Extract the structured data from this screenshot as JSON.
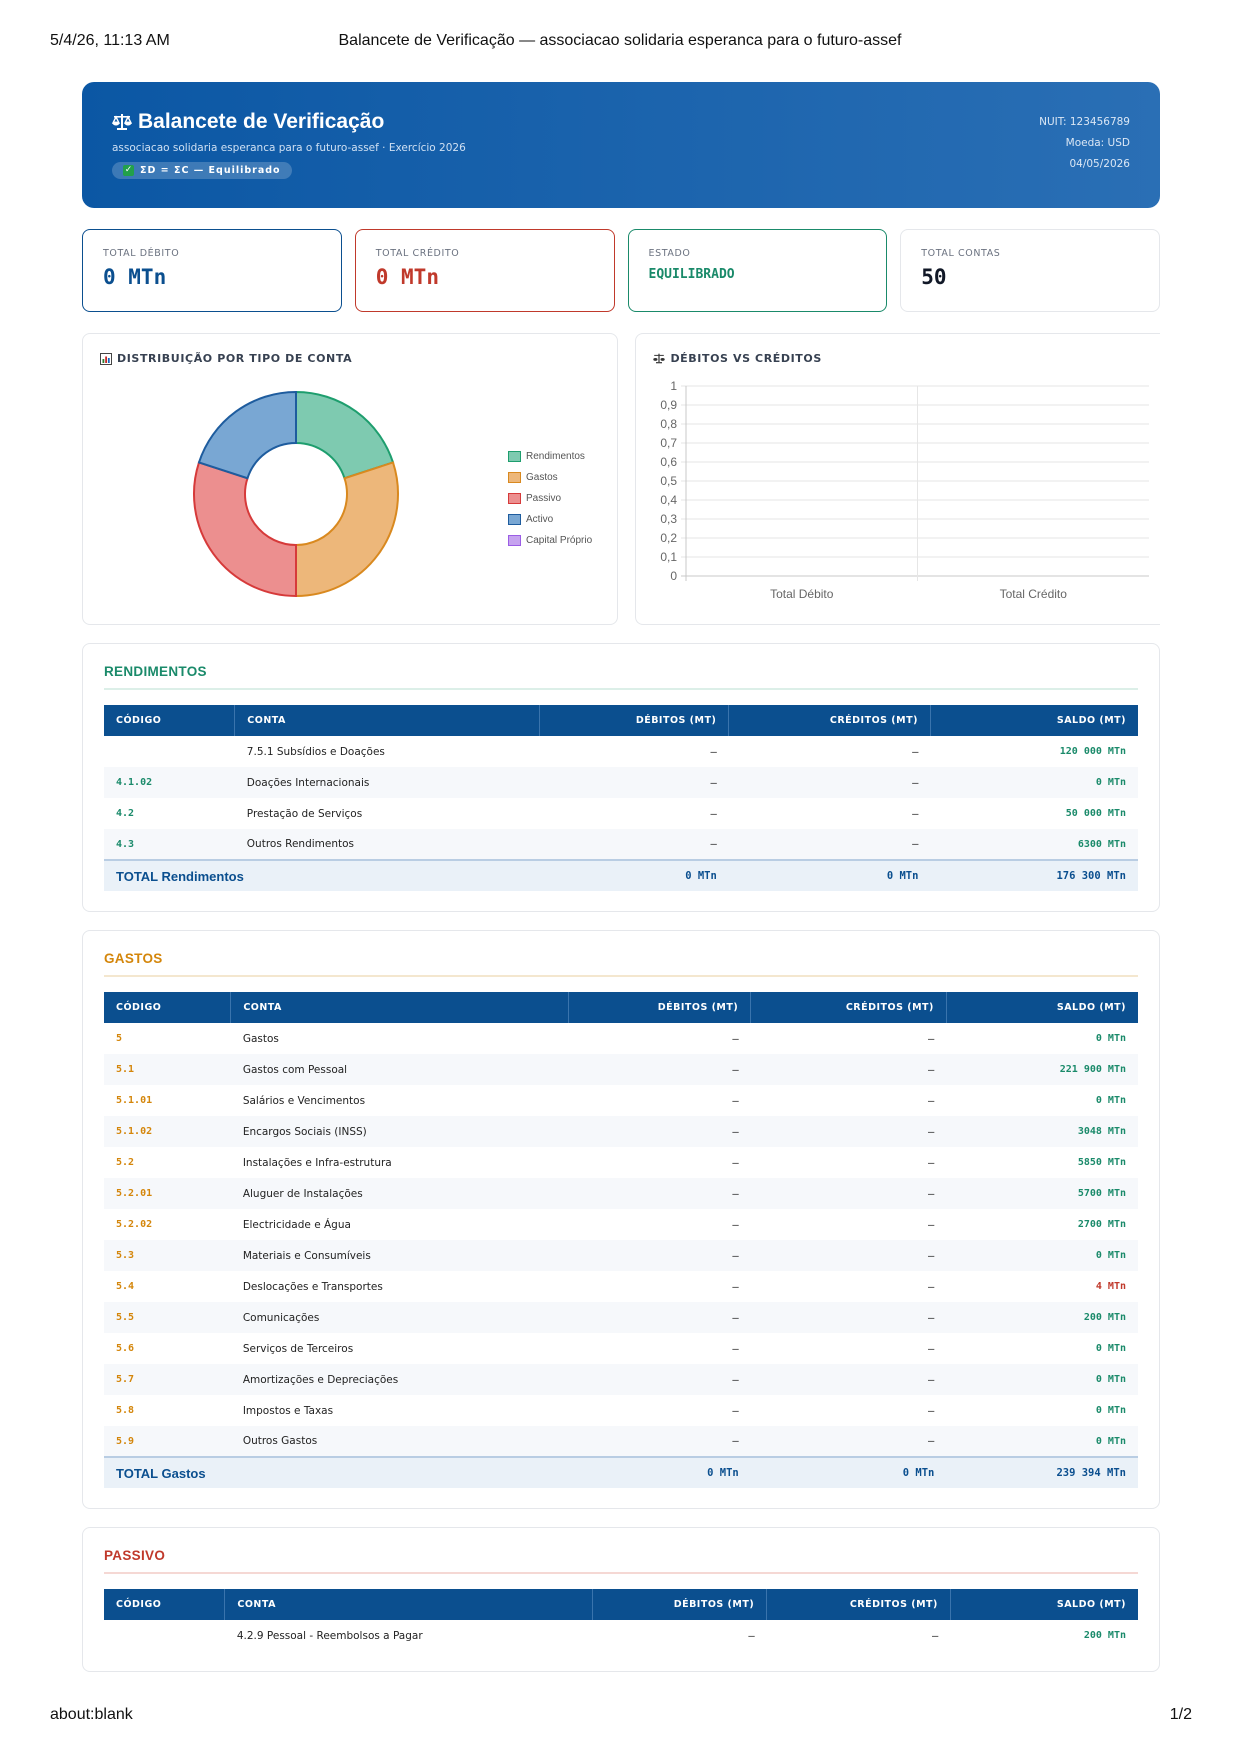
{
  "print": {
    "datetime": "5/4/26, 11:13 AM",
    "title": "Balancete de Verificação — associacao solidaria esperanca para o futuro-assef",
    "url": "about:blank",
    "page": "1/2"
  },
  "header": {
    "title": "Balancete de Verificação",
    "subtitle": "associacao solidaria esperanca para o futuro-assef · Exercício 2026",
    "badge": "ΣD = ΣC — Equilibrado",
    "nuit": "NUIT: 123456789",
    "moeda": "Moeda: USD",
    "date": "04/05/2026"
  },
  "cards": [
    {
      "label": "TOTAL DÉBITO",
      "value": "0 MTn"
    },
    {
      "label": "TOTAL CRÉDITO",
      "value": "0 MTn"
    },
    {
      "label": "ESTADO",
      "value": "EQUILIBRADO"
    },
    {
      "label": "TOTAL CONTAS",
      "value": "50"
    }
  ],
  "charts": {
    "donut_title": "DISTRIBUIÇÃO POR TIPO DE CONTA",
    "bar_title": "DÉBITOS VS CRÉDITOS"
  },
  "chart_data": [
    {
      "type": "pie",
      "title": "DISTRIBUIÇÃO POR TIPO DE CONTA",
      "categories": [
        "Rendimentos",
        "Gastos",
        "Passivo",
        "Activo",
        "Capital Próprio"
      ],
      "values": [
        20,
        30,
        30,
        20,
        0
      ],
      "colors": [
        "#7ecab0",
        "#edb77a",
        "#ec8f8f",
        "#79a7d3",
        "#c6a3ef"
      ],
      "borders": [
        "#1e9e6e",
        "#d9891f",
        "#d63a3a",
        "#1e5c9e",
        "#9b5de5"
      ],
      "legend": "right"
    },
    {
      "type": "bar",
      "title": "DÉBITOS VS CRÉDITOS",
      "categories": [
        "Total Débito",
        "Total Crédito"
      ],
      "values": [
        0,
        0
      ],
      "ylim": [
        0,
        1
      ],
      "yticks": [
        "0",
        "0,1",
        "0,2",
        "0,3",
        "0,4",
        "0,5",
        "0,6",
        "0,7",
        "0,8",
        "0,9",
        "1"
      ],
      "grid": true
    }
  ],
  "table_headers": {
    "codigo": "CÓDIGO",
    "conta": "CONTA",
    "debitos": "DÉBITOS (MT)",
    "creditos": "CRÉDITOS (MT)",
    "saldo": "SALDO (MT)"
  },
  "rendimentos": {
    "title": "RENDIMENTOS",
    "rows": [
      {
        "codigo": "",
        "conta": "7.5.1 Subsídios e Doações",
        "debitos": "–",
        "creditos": "–",
        "saldo": "120 000 MTn"
      },
      {
        "codigo": "4.1.02",
        "conta": "Doações Internacionais",
        "debitos": "–",
        "creditos": "–",
        "saldo": "0 MTn"
      },
      {
        "codigo": "4.2",
        "conta": "Prestação de Serviços",
        "debitos": "–",
        "creditos": "–",
        "saldo": "50 000 MTn"
      },
      {
        "codigo": "4.3",
        "conta": "Outros Rendimentos",
        "debitos": "–",
        "creditos": "–",
        "saldo": "6300 MTn"
      }
    ],
    "total": {
      "label": "TOTAL Rendimentos",
      "debitos": "0 MTn",
      "creditos": "0 MTn",
      "saldo": "176 300 MTn"
    }
  },
  "gastos": {
    "title": "GASTOS",
    "rows": [
      {
        "codigo": "5",
        "conta": "Gastos",
        "debitos": "–",
        "creditos": "–",
        "saldo": "0 MTn"
      },
      {
        "codigo": "5.1",
        "conta": "Gastos com Pessoal",
        "debitos": "–",
        "creditos": "–",
        "saldo": "221 900 MTn"
      },
      {
        "codigo": "5.1.01",
        "conta": "Salários e Vencimentos",
        "debitos": "–",
        "creditos": "–",
        "saldo": "0 MTn"
      },
      {
        "codigo": "5.1.02",
        "conta": "Encargos Sociais (INSS)",
        "debitos": "–",
        "creditos": "–",
        "saldo": "3048 MTn"
      },
      {
        "codigo": "5.2",
        "conta": "Instalações e Infra-estrutura",
        "debitos": "–",
        "creditos": "–",
        "saldo": "5850 MTn"
      },
      {
        "codigo": "5.2.01",
        "conta": "Aluguer de Instalações",
        "debitos": "–",
        "creditos": "–",
        "saldo": "5700 MTn"
      },
      {
        "codigo": "5.2.02",
        "conta": "Electricidade e Água",
        "debitos": "–",
        "creditos": "–",
        "saldo": "2700 MTn"
      },
      {
        "codigo": "5.3",
        "conta": "Materiais e Consumíveis",
        "debitos": "–",
        "creditos": "–",
        "saldo": "0 MTn"
      },
      {
        "codigo": "5.4",
        "conta": "Deslocações e Transportes",
        "debitos": "–",
        "creditos": "–",
        "saldo": "4 MTn",
        "negative": true
      },
      {
        "codigo": "5.5",
        "conta": "Comunicações",
        "debitos": "–",
        "creditos": "–",
        "saldo": "200 MTn"
      },
      {
        "codigo": "5.6",
        "conta": "Serviços de Terceiros",
        "debitos": "–",
        "creditos": "–",
        "saldo": "0 MTn"
      },
      {
        "codigo": "5.7",
        "conta": "Amortizações e Depreciações",
        "debitos": "–",
        "creditos": "–",
        "saldo": "0 MTn"
      },
      {
        "codigo": "5.8",
        "conta": "Impostos e Taxas",
        "debitos": "–",
        "creditos": "–",
        "saldo": "0 MTn"
      },
      {
        "codigo": "5.9",
        "conta": "Outros Gastos",
        "debitos": "–",
        "creditos": "–",
        "saldo": "0 MTn"
      }
    ],
    "total": {
      "label": "TOTAL Gastos",
      "debitos": "0 MTn",
      "creditos": "0 MTn",
      "saldo": "239 394 MTn"
    }
  },
  "passivo": {
    "title": "PASSIVO",
    "rows": [
      {
        "codigo": "",
        "conta": "4.2.9 Pessoal - Reembolsos a Pagar",
        "debitos": "–",
        "creditos": "–",
        "saldo": "200 MTn"
      }
    ]
  }
}
